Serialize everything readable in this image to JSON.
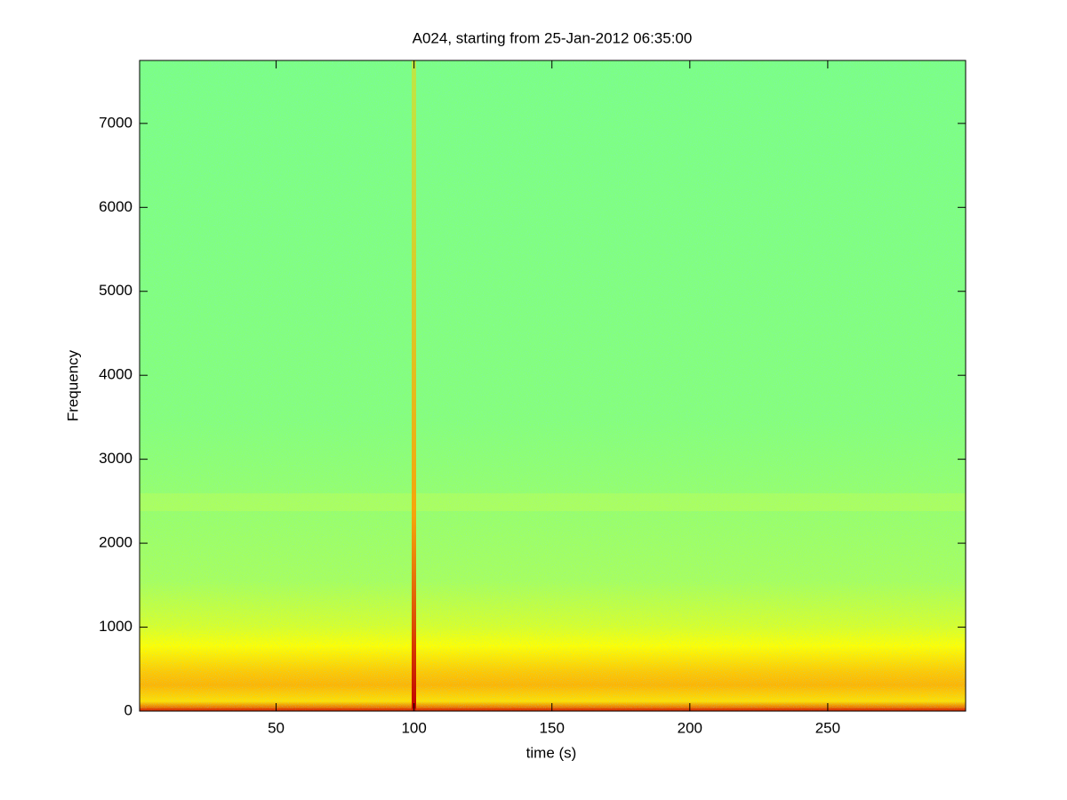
{
  "chart_data": {
    "type": "spectrogram",
    "title": "A024, starting from 25-Jan-2012 06:35:00",
    "x_label": "time (s)",
    "y_label": "Frequency",
    "xlim": [
      0.5,
      300
    ],
    "ylim": [
      0,
      7750
    ],
    "xticks": [
      50,
      100,
      150,
      200,
      250
    ],
    "yticks": [
      0,
      1000,
      2000,
      3000,
      4000,
      5000,
      6000,
      7000
    ]
  }
}
